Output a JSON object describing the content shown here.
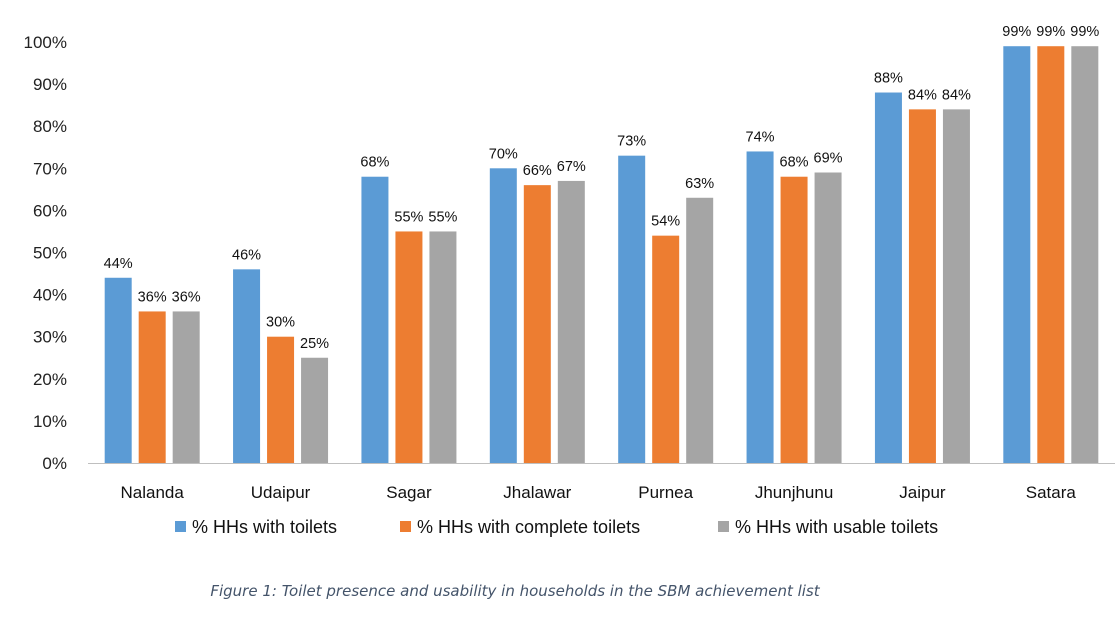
{
  "chart_data": {
    "type": "bar",
    "categories": [
      "Nalanda",
      "Udaipur",
      "Sagar",
      "Jhalawar",
      "Purnea",
      "Jhunjhunu",
      "Jaipur",
      "Satara"
    ],
    "series": [
      {
        "name": "% HHs with toilets",
        "color": "#5B9BD5",
        "values": [
          44,
          46,
          68,
          70,
          73,
          74,
          88,
          99
        ]
      },
      {
        "name": "% HHs with complete toilets",
        "color": "#ED7D31",
        "values": [
          36,
          30,
          55,
          66,
          54,
          68,
          84,
          99
        ]
      },
      {
        "name": "% HHs with usable toilets",
        "color": "#A5A5A5",
        "values": [
          36,
          25,
          55,
          67,
          63,
          69,
          84,
          99
        ]
      }
    ],
    "y_ticks": [
      "0%",
      "10%",
      "20%",
      "30%",
      "40%",
      "50%",
      "60%",
      "70%",
      "80%",
      "90%",
      "100%"
    ],
    "ylim": [
      0,
      100
    ],
    "value_suffix": "%",
    "grid": false,
    "legend_position": "bottom"
  },
  "caption": "Figure 1: Toilet presence and usability in households in the SBM achievement list"
}
